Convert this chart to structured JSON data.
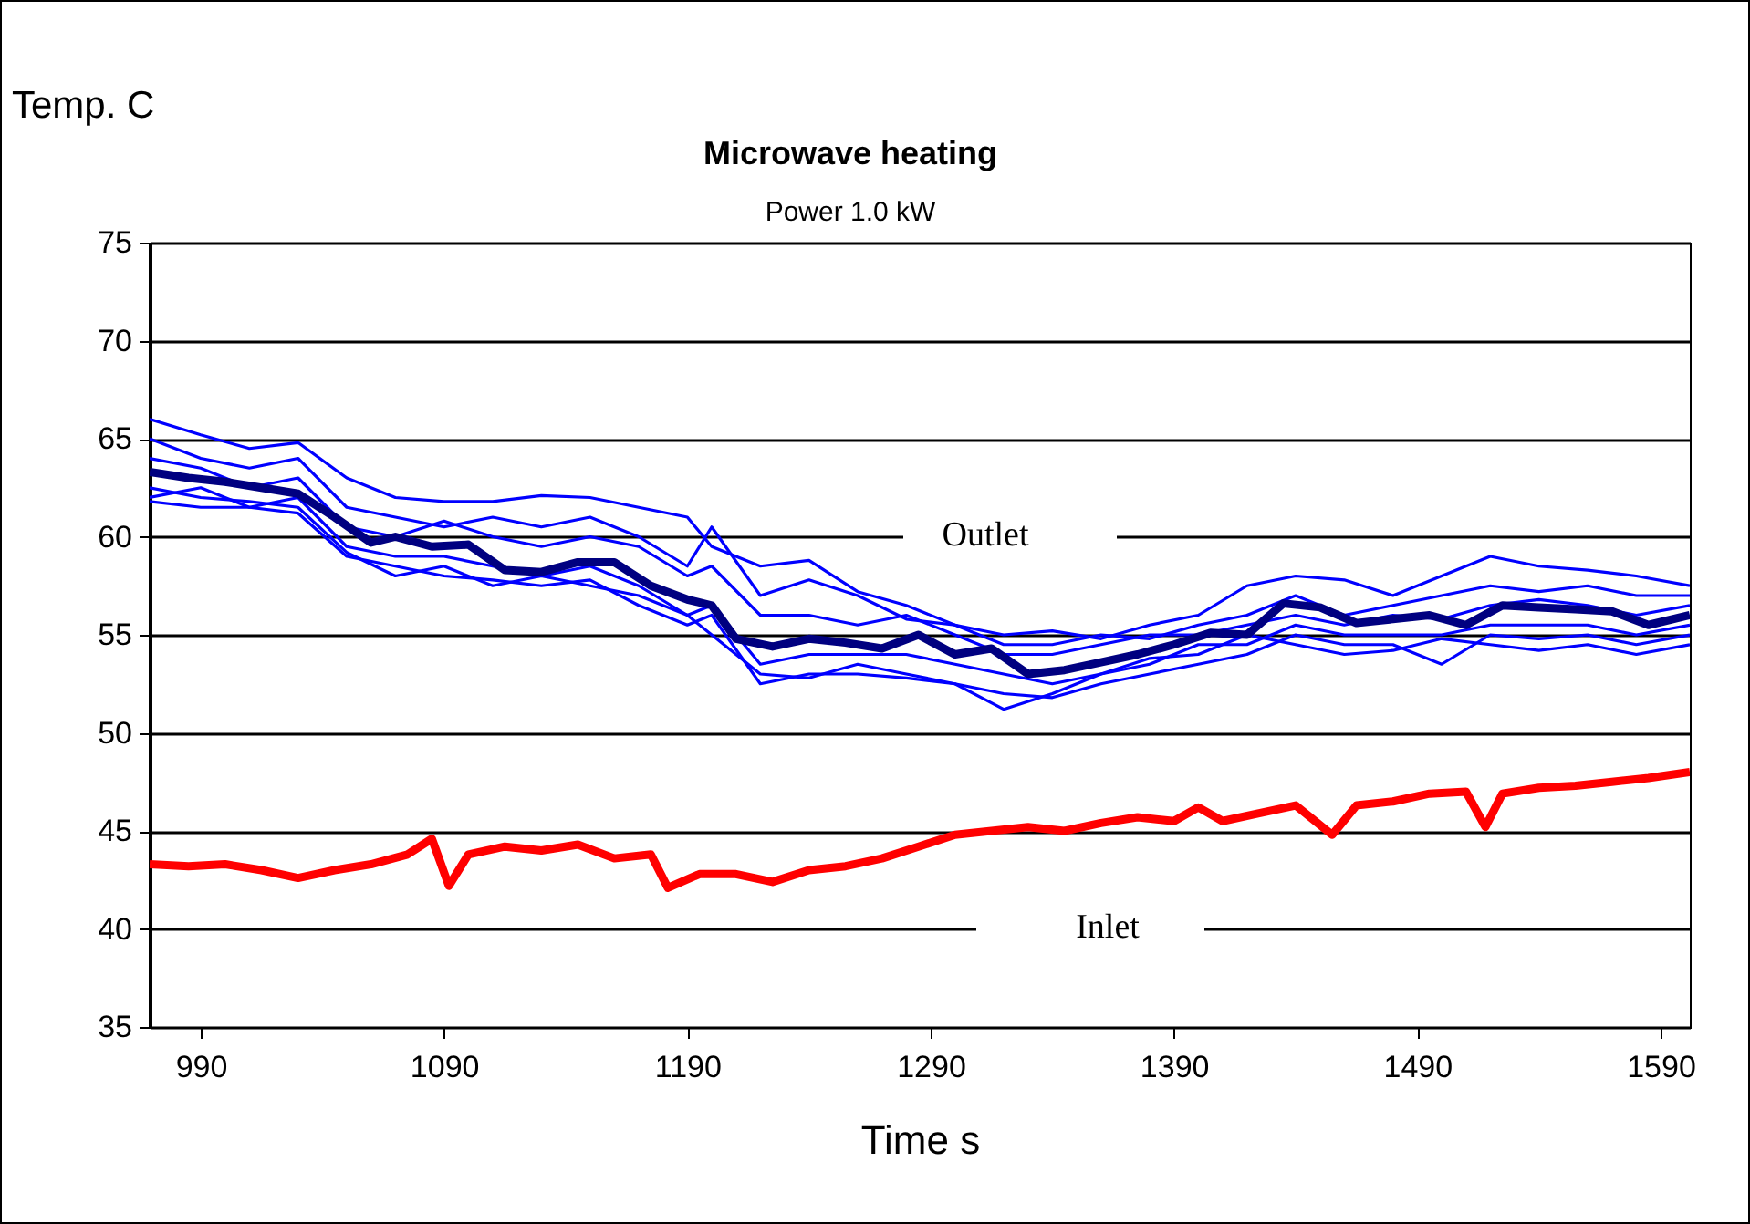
{
  "chart_data": {
    "type": "line",
    "title": "Microwave heating",
    "subtitle": "Power 1.0 kW",
    "xlabel": "Time s",
    "ylabel": "Temp. C",
    "xlim": [
      969,
      1602
    ],
    "xticks": [
      990,
      1090,
      1190,
      1290,
      1390,
      1490,
      1590
    ],
    "ylim": [
      35,
      75
    ],
    "yticks": [
      35,
      40,
      45,
      50,
      55,
      60,
      65,
      70,
      75
    ],
    "grid": "y",
    "annotations": [
      "Outlet",
      "Inlet"
    ],
    "x": [
      969,
      990,
      1010,
      1030,
      1050,
      1070,
      1090,
      1110,
      1130,
      1150,
      1170,
      1190,
      1200,
      1220,
      1240,
      1260,
      1280,
      1300,
      1320,
      1340,
      1360,
      1380,
      1400,
      1420,
      1440,
      1460,
      1480,
      1500,
      1520,
      1540,
      1560,
      1580,
      1602
    ],
    "series": [
      {
        "color": "#0000ff",
        "values": [
          66,
          65.2,
          64.5,
          64.8,
          63,
          62,
          61.8,
          61.8,
          62.1,
          62,
          61.5,
          61,
          59.5,
          58.5,
          58.8,
          57.2,
          56.5,
          55.5,
          55,
          55.2,
          54.8,
          55.5,
          56,
          57.5,
          58,
          57.8,
          57,
          58,
          59,
          58.5,
          58.3,
          58,
          57.5
        ]
      },
      {
        "color": "#0000ff",
        "values": [
          65,
          64,
          63.5,
          64,
          61.5,
          61,
          60.5,
          61,
          60.5,
          61,
          60,
          58.5,
          60.5,
          57,
          57.8,
          57,
          55.8,
          55.5,
          54.5,
          54.5,
          55,
          54.8,
          55.5,
          56,
          57,
          56,
          56.5,
          57,
          57.5,
          57.2,
          57.5,
          57,
          57
        ]
      },
      {
        "color": "#0000ff",
        "values": [
          64,
          63.5,
          62.5,
          63,
          60.5,
          60,
          60.8,
          60,
          59.5,
          60,
          59.5,
          58,
          58.5,
          56,
          56,
          55.5,
          56,
          55,
          54,
          54,
          54.5,
          55,
          55,
          55.5,
          56,
          55.5,
          56,
          55.8,
          56.5,
          56.8,
          56.5,
          56,
          56.5
        ]
      },
      {
        "color": "#0000ff",
        "values": [
          62,
          62.5,
          61.5,
          62,
          59.5,
          59,
          59,
          58.5,
          58,
          58.5,
          57.5,
          56,
          56.5,
          53.5,
          54,
          54,
          54,
          53.5,
          53,
          52.5,
          53,
          53.5,
          54.5,
          54.5,
          55.5,
          55,
          55,
          55,
          55.5,
          55.5,
          55.5,
          55,
          55.5
        ]
      },
      {
        "color": "#0000ff",
        "values": [
          61.8,
          61.5,
          61.5,
          61.2,
          59,
          58.5,
          58,
          57.8,
          57.5,
          57.8,
          56.5,
          55.5,
          56,
          52.5,
          53,
          53,
          52.8,
          52.5,
          52,
          51.8,
          52.5,
          53,
          53.5,
          54,
          55,
          54.5,
          54.5,
          53.5,
          55,
          54.8,
          55,
          54.5,
          55
        ]
      },
      {
        "color": "#0000ff",
        "values": [
          62.5,
          62,
          61.8,
          61.5,
          59.2,
          58,
          58.5,
          57.5,
          58,
          57.5,
          57,
          56,
          55,
          53,
          52.8,
          53.5,
          53,
          52.5,
          51.2,
          52,
          53,
          53.8,
          54,
          55,
          54.5,
          54,
          54.2,
          54.8,
          54.5,
          54.2,
          54.5,
          54,
          54.5
        ]
      },
      {
        "color": "#000080",
        "x": [
          969,
          985,
          1000,
          1015,
          1030,
          1045,
          1060,
          1070,
          1085,
          1100,
          1115,
          1130,
          1145,
          1160,
          1175,
          1190,
          1200,
          1210,
          1225,
          1240,
          1255,
          1270,
          1285,
          1300,
          1315,
          1330,
          1345,
          1360,
          1375,
          1390,
          1405,
          1420,
          1435,
          1450,
          1465,
          1480,
          1495,
          1510,
          1525,
          1540,
          1555,
          1570,
          1585,
          1602
        ],
        "values": [
          63.3,
          63,
          62.8,
          62.5,
          62.2,
          61,
          59.7,
          60,
          59.5,
          59.6,
          58.3,
          58.2,
          58.7,
          58.7,
          57.5,
          56.8,
          56.5,
          54.8,
          54.4,
          54.8,
          54.6,
          54.3,
          55,
          54,
          54.3,
          53,
          53.2,
          53.6,
          54,
          54.5,
          55.1,
          55,
          56.6,
          56.4,
          55.6,
          55.8,
          56,
          55.5,
          56.5,
          56.4,
          56.3,
          56.2,
          55.5,
          56
        ]
      },
      {
        "color": "#ff0000",
        "x": [
          969,
          985,
          1000,
          1015,
          1030,
          1045,
          1060,
          1075,
          1085,
          1092,
          1100,
          1115,
          1130,
          1145,
          1160,
          1175,
          1182,
          1195,
          1210,
          1225,
          1240,
          1255,
          1270,
          1285,
          1300,
          1315,
          1330,
          1345,
          1360,
          1375,
          1390,
          1400,
          1410,
          1425,
          1440,
          1455,
          1465,
          1480,
          1495,
          1510,
          1518,
          1525,
          1540,
          1555,
          1570,
          1585,
          1602
        ],
        "values": [
          43.3,
          43.2,
          43.3,
          43,
          42.6,
          43,
          43.3,
          43.8,
          44.6,
          42.2,
          43.8,
          44.2,
          44,
          44.3,
          43.6,
          43.8,
          42.1,
          42.8,
          42.8,
          42.4,
          43,
          43.2,
          43.6,
          44.2,
          44.8,
          45,
          45.2,
          45,
          45.4,
          45.7,
          45.5,
          46.2,
          45.5,
          45.9,
          46.3,
          44.8,
          46.3,
          46.5,
          46.9,
          47,
          45.2,
          46.9,
          47.2,
          47.3,
          47.5,
          47.7,
          48
        ]
      }
    ]
  }
}
